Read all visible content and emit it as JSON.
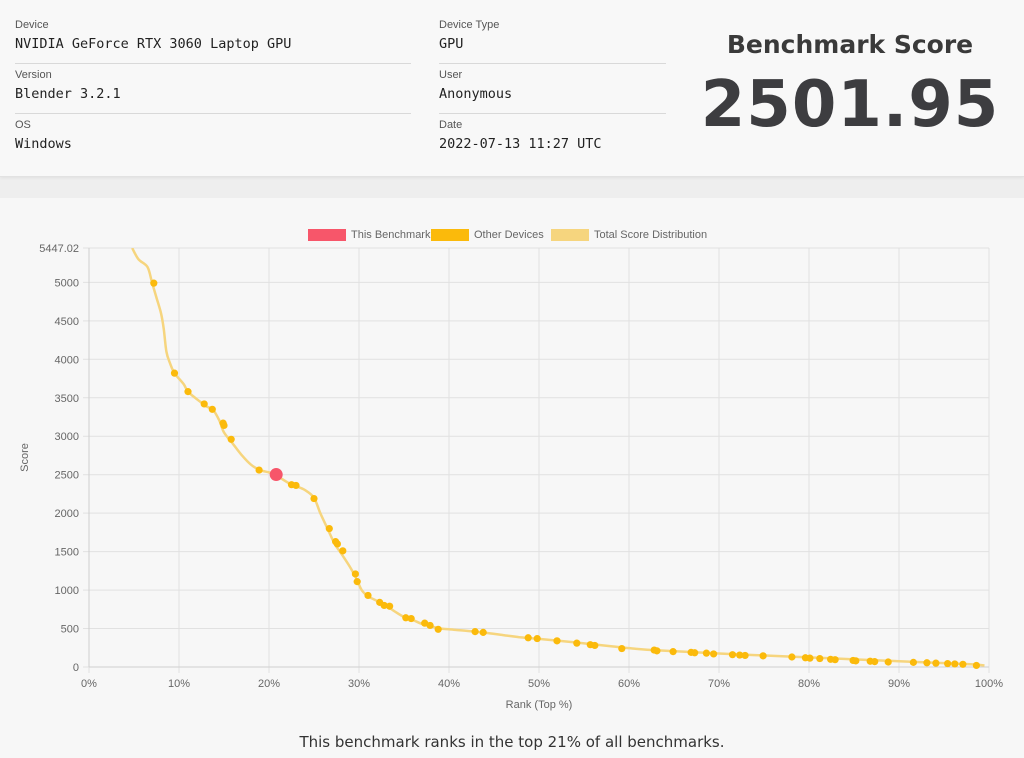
{
  "details": {
    "device_label": "Device",
    "device_value": "NVIDIA GeForce RTX 3060 Laptop GPU",
    "version_label": "Version",
    "version_value": "Blender 3.2.1",
    "os_label": "OS",
    "os_value": "Windows",
    "device_type_label": "Device Type",
    "device_type_value": "GPU",
    "user_label": "User",
    "user_value": "Anonymous",
    "date_label": "Date",
    "date_value": "2022-07-13 11:27 UTC"
  },
  "score": {
    "title": "Benchmark Score",
    "value": "2501.95"
  },
  "rank_text": "This benchmark ranks in the top 21% of all benchmarks.",
  "colors": {
    "this_benchmark": "#f7566a",
    "other_devices": "#fbba0b",
    "distribution": "#f6d57e"
  },
  "chart_data": {
    "type": "scatter",
    "title": "",
    "xlabel": "Rank (Top %)",
    "ylabel": "Score",
    "xlim": [
      0,
      100
    ],
    "ylim": [
      0,
      5447.02
    ],
    "x_ticks": [
      "0%",
      "10%",
      "20%",
      "30%",
      "40%",
      "50%",
      "60%",
      "70%",
      "80%",
      "90%",
      "100%"
    ],
    "y_ticks": [
      "5447.02",
      "5000",
      "4500",
      "4000",
      "3500",
      "3000",
      "2500",
      "2000",
      "1500",
      "1000",
      "500",
      "0"
    ],
    "legend": [
      "This Benchmark",
      "Other Devices",
      "Total Score Distribution"
    ],
    "legend_position": "top",
    "grid": true,
    "distribution": {
      "name": "Total Score Distribution",
      "x": [
        4.8,
        5.5,
        6.5,
        7.0,
        7.5,
        8.0,
        8.3,
        8.6,
        9.0,
        9.5,
        10.5,
        11.0,
        12.0,
        12.7,
        13.0,
        13.8,
        14.5,
        15.0,
        16.0,
        17.0,
        18.0,
        19.0,
        20.0,
        20.7,
        21.5,
        22.5,
        23.0,
        24.0,
        25.0,
        25.7,
        26.5,
        27.3,
        28.0,
        29.0,
        29.7,
        30.3,
        31.0,
        32.0,
        33.0,
        34.0,
        35.0,
        36.0,
        37.0,
        38.0,
        39.0,
        40.0,
        42.0,
        44.0,
        46.0,
        48.0,
        50.0,
        54.0,
        58.0,
        60.0,
        62.0,
        66.0,
        70.0,
        74.0,
        78.0,
        82.0,
        86.0,
        90.0,
        94.0,
        98.0,
        99.5
      ],
      "y": [
        5447,
        5300,
        5200,
        5000,
        4800,
        4600,
        4400,
        4100,
        3950,
        3820,
        3680,
        3580,
        3480,
        3420,
        3390,
        3340,
        3200,
        3050,
        2900,
        2750,
        2630,
        2560,
        2530,
        2502,
        2440,
        2370,
        2350,
        2300,
        2200,
        2000,
        1800,
        1600,
        1480,
        1300,
        1150,
        1000,
        920,
        860,
        800,
        720,
        650,
        610,
        560,
        530,
        500,
        490,
        470,
        445,
        415,
        385,
        365,
        320,
        270,
        245,
        225,
        200,
        175,
        155,
        135,
        115,
        95,
        75,
        55,
        35,
        20
      ]
    },
    "other_devices": {
      "name": "Other Devices",
      "x": [
        7.2,
        9.5,
        11.0,
        12.8,
        13.7,
        14.9,
        15.0,
        15.8,
        18.9,
        22.5,
        23.0,
        25.0,
        26.7,
        27.4,
        27.6,
        28.2,
        29.6,
        29.8,
        31.0,
        32.3,
        32.8,
        33.4,
        35.2,
        35.8,
        37.3,
        37.9,
        38.8,
        42.9,
        43.8,
        48.8,
        49.8,
        52.0,
        54.2,
        55.7,
        56.2,
        59.2,
        62.8,
        63.1,
        64.9,
        66.9,
        67.3,
        68.6,
        69.4,
        71.5,
        72.3,
        72.9,
        74.9,
        78.1,
        79.6,
        80.1,
        81.2,
        82.4,
        82.9,
        84.9,
        85.2,
        86.8,
        87.3,
        88.8,
        91.6,
        93.1,
        94.1,
        95.4,
        96.2,
        97.1,
        98.6
      ],
      "y": [
        4990,
        3820,
        3580,
        3420,
        3350,
        3170,
        3140,
        2960,
        2560,
        2370,
        2360,
        2190,
        1800,
        1630,
        1600,
        1510,
        1210,
        1110,
        930,
        840,
        800,
        790,
        640,
        630,
        570,
        540,
        490,
        460,
        450,
        380,
        370,
        340,
        310,
        290,
        280,
        240,
        220,
        210,
        200,
        190,
        185,
        180,
        170,
        160,
        155,
        150,
        145,
        130,
        120,
        115,
        110,
        100,
        95,
        85,
        80,
        75,
        70,
        65,
        60,
        55,
        50,
        45,
        40,
        35,
        20
      ]
    },
    "this_benchmark": {
      "name": "This Benchmark",
      "x": [
        20.8
      ],
      "y": [
        2501.95
      ]
    }
  }
}
